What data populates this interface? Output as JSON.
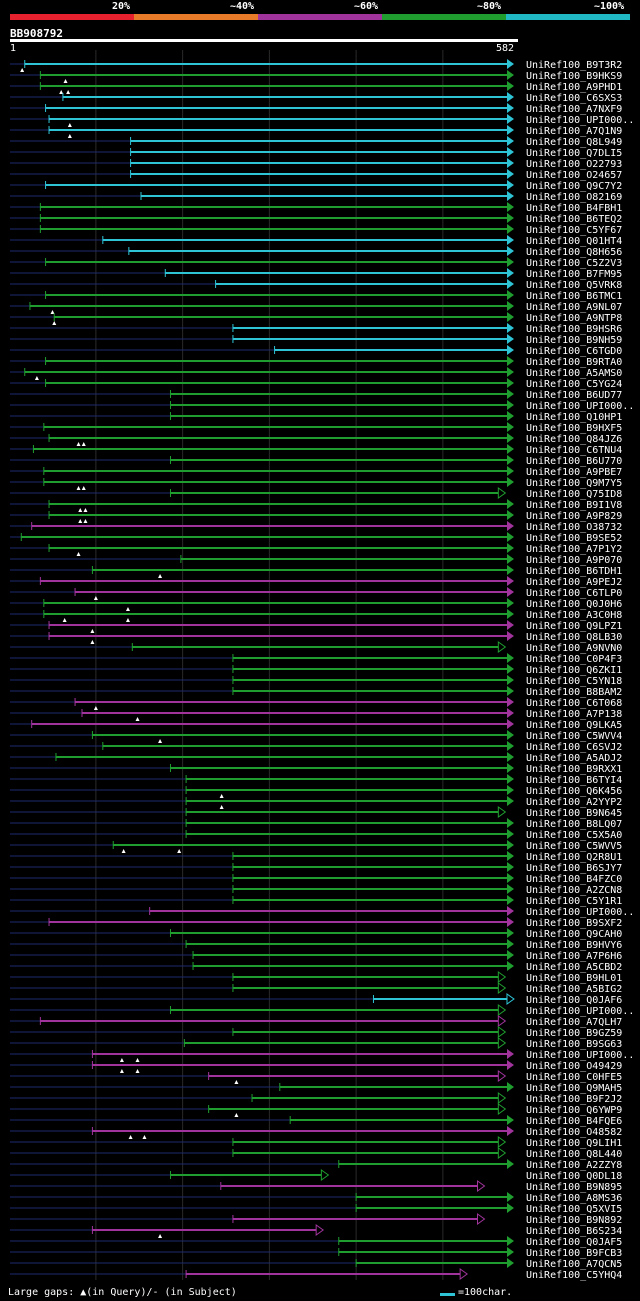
{
  "legend": {
    "labels": [
      "20%",
      "~40%",
      "~60%",
      "~80%",
      "~100%"
    ],
    "colors": [
      "#e8212f",
      "#e87b2a",
      "#a0349c",
      "#1f9e2f",
      "#1fb8c4"
    ]
  },
  "query": {
    "id": "BB908792",
    "start_label": "1",
    "end_label": "582",
    "length": 582
  },
  "footer": {
    "gaps_note": "Large gaps: ▲(in Query)/- (in Subject)",
    "scale_label": "=100char."
  },
  "hits": [
    {
      "name": "UniRef100_B9T3R2",
      "start": 18,
      "end": 582,
      "color": "cyan",
      "query_gaps": [
        15
      ],
      "arrow": "open"
    },
    {
      "name": "UniRef100_B9HKS9",
      "start": 36,
      "end": 582,
      "color": "green",
      "query_gaps": [
        65
      ],
      "arrow": "open"
    },
    {
      "name": "UniRef100_A9PHD1",
      "start": 36,
      "end": 582,
      "color": "green",
      "query_gaps": [
        60,
        68
      ],
      "arrow": "open"
    },
    {
      "name": "UniRef100_C6SXS3",
      "start": 62,
      "end": 582,
      "color": "cyan",
      "query_gaps": [],
      "arrow": "open"
    },
    {
      "name": "UniRef100_A7NXF9",
      "start": 42,
      "end": 582,
      "color": "cyan",
      "query_gaps": [],
      "arrow": "open"
    },
    {
      "name": "UniRef100_UPI000..",
      "start": 46,
      "end": 582,
      "color": "cyan",
      "query_gaps": [
        70
      ],
      "arrow": "open"
    },
    {
      "name": "UniRef100_A7Q1N9",
      "start": 46,
      "end": 582,
      "color": "cyan",
      "query_gaps": [
        70
      ],
      "arrow": "open"
    },
    {
      "name": "UniRef100_Q8L949",
      "start": 140,
      "end": 582,
      "color": "cyan",
      "query_gaps": [],
      "arrow": "open"
    },
    {
      "name": "UniRef100_Q7DLI5",
      "start": 140,
      "end": 582,
      "color": "cyan",
      "query_gaps": [],
      "arrow": "open"
    },
    {
      "name": "UniRef100_O22793",
      "start": 140,
      "end": 582,
      "color": "cyan",
      "query_gaps": [],
      "arrow": "open"
    },
    {
      "name": "UniRef100_O24657",
      "start": 140,
      "end": 582,
      "color": "cyan",
      "query_gaps": [],
      "arrow": "open"
    },
    {
      "name": "UniRef100_Q9C7Y2",
      "start": 42,
      "end": 582,
      "color": "cyan",
      "query_gaps": [],
      "arrow": "open"
    },
    {
      "name": "UniRef100_O82169",
      "start": 152,
      "end": 582,
      "color": "cyan",
      "query_gaps": [],
      "arrow": "open"
    },
    {
      "name": "UniRef100_B4FBH1",
      "start": 36,
      "end": 582,
      "color": "green",
      "query_gaps": [],
      "arrow": "open"
    },
    {
      "name": "UniRef100_B6TEQ2",
      "start": 36,
      "end": 582,
      "color": "green",
      "query_gaps": [],
      "arrow": "open"
    },
    {
      "name": "UniRef100_C5YF67",
      "start": 36,
      "end": 582,
      "color": "green",
      "query_gaps": [],
      "arrow": "open"
    },
    {
      "name": "UniRef100_Q01HT4",
      "start": 108,
      "end": 582,
      "color": "cyan",
      "query_gaps": [],
      "arrow": "open"
    },
    {
      "name": "UniRef100_Q8H656",
      "start": 138,
      "end": 582,
      "color": "cyan",
      "query_gaps": [],
      "arrow": "open"
    },
    {
      "name": "UniRef100_C5Z2V3",
      "start": 42,
      "end": 582,
      "color": "green",
      "query_gaps": [],
      "arrow": "open"
    },
    {
      "name": "UniRef100_B7FM95",
      "start": 180,
      "end": 582,
      "color": "cyan",
      "query_gaps": [],
      "arrow": "open"
    },
    {
      "name": "UniRef100_Q5VRK8",
      "start": 238,
      "end": 582,
      "color": "cyan",
      "query_gaps": [],
      "arrow": "open"
    },
    {
      "name": "UniRef100_B6TMC1",
      "start": 42,
      "end": 582,
      "color": "green",
      "query_gaps": [],
      "arrow": "open"
    },
    {
      "name": "UniRef100_A9NL07",
      "start": 24,
      "end": 582,
      "color": "green",
      "query_gaps": [
        50
      ],
      "arrow": "open"
    },
    {
      "name": "UniRef100_A9NTP8",
      "start": 52,
      "end": 582,
      "color": "green",
      "query_gaps": [
        52
      ],
      "arrow": "open"
    },
    {
      "name": "UniRef100_B9HSR6",
      "start": 258,
      "end": 582,
      "color": "cyan",
      "query_gaps": [],
      "arrow": "open"
    },
    {
      "name": "UniRef100_B9NH59",
      "start": 258,
      "end": 582,
      "color": "cyan",
      "query_gaps": [],
      "arrow": "open"
    },
    {
      "name": "UniRef100_C6TGD0",
      "start": 306,
      "end": 582,
      "color": "cyan",
      "query_gaps": [],
      "arrow": "open"
    },
    {
      "name": "UniRef100_B9RTA0",
      "start": 42,
      "end": 582,
      "color": "green",
      "query_gaps": [],
      "arrow": "open"
    },
    {
      "name": "UniRef100_A5AMS0",
      "start": 18,
      "end": 582,
      "color": "green",
      "query_gaps": [
        32
      ],
      "arrow": "open"
    },
    {
      "name": "UniRef100_C5YG24",
      "start": 42,
      "end": 582,
      "color": "green",
      "query_gaps": [],
      "arrow": "open"
    },
    {
      "name": "UniRef100_B6UD77",
      "start": 186,
      "end": 582,
      "color": "green",
      "query_gaps": [],
      "arrow": "open"
    },
    {
      "name": "UniRef100_UPI000..",
      "start": 186,
      "end": 582,
      "color": "green",
      "query_gaps": [],
      "arrow": "open"
    },
    {
      "name": "UniRef100_Q10HP1",
      "start": 186,
      "end": 582,
      "color": "green",
      "query_gaps": [],
      "arrow": "open"
    },
    {
      "name": "UniRef100_B9HXF5",
      "start": 40,
      "end": 582,
      "color": "green",
      "query_gaps": [],
      "arrow": "open"
    },
    {
      "name": "UniRef100_Q84JZ6",
      "start": 46,
      "end": 582,
      "color": "green",
      "query_gaps": [
        80,
        86
      ],
      "arrow": "open"
    },
    {
      "name": "UniRef100_C6TNU4",
      "start": 28,
      "end": 582,
      "color": "green",
      "query_gaps": [],
      "arrow": "open"
    },
    {
      "name": "UniRef100_B6U770",
      "start": 186,
      "end": 582,
      "color": "green",
      "query_gaps": [],
      "arrow": "open"
    },
    {
      "name": "UniRef100_A9PBE7",
      "start": 40,
      "end": 582,
      "color": "green",
      "query_gaps": [],
      "arrow": "open"
    },
    {
      "name": "UniRef100_Q9M7Y5",
      "start": 40,
      "end": 582,
      "color": "green",
      "query_gaps": [
        80,
        86
      ],
      "arrow": "open"
    },
    {
      "name": "UniRef100_Q75ID8",
      "start": 186,
      "end": 572,
      "color": "green",
      "query_gaps": [],
      "arrow": "closed"
    },
    {
      "name": "UniRef100_B9I1V8",
      "start": 46,
      "end": 582,
      "color": "green",
      "query_gaps": [
        82,
        88
      ],
      "arrow": "open"
    },
    {
      "name": "UniRef100_A9P829",
      "start": 46,
      "end": 582,
      "color": "green",
      "query_gaps": [
        82,
        88
      ],
      "arrow": "open"
    },
    {
      "name": "UniRef100_O38732",
      "start": 26,
      "end": 582,
      "color": "magenta",
      "query_gaps": [],
      "arrow": "open"
    },
    {
      "name": "UniRef100_B9SE52",
      "start": 14,
      "end": 582,
      "color": "green",
      "query_gaps": [],
      "arrow": "open"
    },
    {
      "name": "UniRef100_A7P1Y2",
      "start": 46,
      "end": 582,
      "color": "green",
      "query_gaps": [
        80
      ],
      "arrow": "open"
    },
    {
      "name": "UniRef100_A9P070",
      "start": 198,
      "end": 582,
      "color": "green",
      "query_gaps": [],
      "arrow": "open"
    },
    {
      "name": "UniRef100_B6TDH1",
      "start": 96,
      "end": 582,
      "color": "green",
      "query_gaps": [
        174
      ],
      "arrow": "open"
    },
    {
      "name": "UniRef100_A9PEJ2",
      "start": 36,
      "end": 582,
      "color": "magenta",
      "query_gaps": [],
      "arrow": "open"
    },
    {
      "name": "UniRef100_C6TLP0",
      "start": 76,
      "end": 582,
      "color": "magenta",
      "query_gaps": [
        100
      ],
      "arrow": "open"
    },
    {
      "name": "UniRef100_Q0J0H6",
      "start": 40,
      "end": 582,
      "color": "green",
      "query_gaps": [
        137
      ],
      "arrow": "open"
    },
    {
      "name": "UniRef100_A3C0H8",
      "start": 40,
      "end": 582,
      "color": "green",
      "query_gaps": [
        64,
        137
      ],
      "arrow": "open"
    },
    {
      "name": "UniRef100_Q9LPZ1",
      "start": 46,
      "end": 582,
      "color": "magenta",
      "query_gaps": [
        96
      ],
      "arrow": "open"
    },
    {
      "name": "UniRef100_Q8LB30",
      "start": 46,
      "end": 582,
      "color": "magenta",
      "query_gaps": [
        96
      ],
      "arrow": "open"
    },
    {
      "name": "UniRef100_A9NVN0",
      "start": 142,
      "end": 572,
      "color": "green",
      "query_gaps": [],
      "arrow": "closed"
    },
    {
      "name": "UniRef100_C0P4F3",
      "start": 258,
      "end": 582,
      "color": "green",
      "query_gaps": [],
      "arrow": "open"
    },
    {
      "name": "UniRef100_Q6ZKI1",
      "start": 258,
      "end": 582,
      "color": "green",
      "query_gaps": [],
      "arrow": "open"
    },
    {
      "name": "UniRef100_C5YN18",
      "start": 258,
      "end": 582,
      "color": "green",
      "query_gaps": [],
      "arrow": "open"
    },
    {
      "name": "UniRef100_B8BAM2",
      "start": 258,
      "end": 582,
      "color": "green",
      "query_gaps": [],
      "arrow": "open"
    },
    {
      "name": "UniRef100_C6T068",
      "start": 76,
      "end": 582,
      "color": "magenta",
      "query_gaps": [
        100
      ],
      "arrow": "open"
    },
    {
      "name": "UniRef100_A7P138",
      "start": 84,
      "end": 582,
      "color": "magenta",
      "query_gaps": [
        148
      ],
      "arrow": "open"
    },
    {
      "name": "UniRef100_Q9LKA5",
      "start": 26,
      "end": 582,
      "color": "magenta",
      "query_gaps": [],
      "arrow": "open"
    },
    {
      "name": "UniRef100_C5WVV4",
      "start": 96,
      "end": 582,
      "color": "green",
      "query_gaps": [
        174
      ],
      "arrow": "open"
    },
    {
      "name": "UniRef100_C6SVJ2",
      "start": 108,
      "end": 582,
      "color": "green",
      "query_gaps": [],
      "arrow": "open"
    },
    {
      "name": "UniRef100_A5ADJ2",
      "start": 54,
      "end": 582,
      "color": "green",
      "query_gaps": [],
      "arrow": "open"
    },
    {
      "name": "UniRef100_B9RXX1",
      "start": 186,
      "end": 582,
      "color": "green",
      "query_gaps": [],
      "arrow": "open"
    },
    {
      "name": "UniRef100_B6TYI4",
      "start": 204,
      "end": 582,
      "color": "green",
      "query_gaps": [],
      "arrow": "open"
    },
    {
      "name": "UniRef100_Q6K456",
      "start": 204,
      "end": 582,
      "color": "green",
      "query_gaps": [
        245
      ],
      "arrow": "open"
    },
    {
      "name": "UniRef100_A2YYP2",
      "start": 204,
      "end": 582,
      "color": "green",
      "query_gaps": [
        245
      ],
      "arrow": "open"
    },
    {
      "name": "UniRef100_B9N645",
      "start": 204,
      "end": 572,
      "color": "green",
      "query_gaps": [],
      "arrow": "closed"
    },
    {
      "name": "UniRef100_B8LQ07",
      "start": 204,
      "end": 582,
      "color": "green",
      "query_gaps": [],
      "arrow": "open"
    },
    {
      "name": "UniRef100_C5X5A0",
      "start": 204,
      "end": 582,
      "color": "green",
      "query_gaps": [],
      "arrow": "open"
    },
    {
      "name": "UniRef100_C5WVV5",
      "start": 120,
      "end": 582,
      "color": "green",
      "query_gaps": [
        132,
        196
      ],
      "arrow": "open"
    },
    {
      "name": "UniRef100_Q2R8U1",
      "start": 258,
      "end": 582,
      "color": "green",
      "query_gaps": [],
      "arrow": "open"
    },
    {
      "name": "UniRef100_B6SJY7",
      "start": 258,
      "end": 582,
      "color": "green",
      "query_gaps": [],
      "arrow": "open"
    },
    {
      "name": "UniRef100_B4FZC0",
      "start": 258,
      "end": 582,
      "color": "green",
      "query_gaps": [],
      "arrow": "open"
    },
    {
      "name": "UniRef100_A2ZCN8",
      "start": 258,
      "end": 582,
      "color": "green",
      "query_gaps": [],
      "arrow": "open"
    },
    {
      "name": "UniRef100_C5Y1R1",
      "start": 258,
      "end": 582,
      "color": "green",
      "query_gaps": [],
      "arrow": "open"
    },
    {
      "name": "UniRef100_UPI000..",
      "start": 162,
      "end": 582,
      "color": "magenta",
      "query_gaps": [],
      "arrow": "open"
    },
    {
      "name": "UniRef100_B9SXF2",
      "start": 46,
      "end": 582,
      "color": "magenta",
      "query_gaps": [],
      "arrow": "open"
    },
    {
      "name": "UniRef100_Q9CAH0",
      "start": 186,
      "end": 582,
      "color": "green",
      "query_gaps": [],
      "arrow": "open"
    },
    {
      "name": "UniRef100_B9HVY6",
      "start": 204,
      "end": 582,
      "color": "green",
      "query_gaps": [],
      "arrow": "open"
    },
    {
      "name": "UniRef100_A7P6H6",
      "start": 212,
      "end": 582,
      "color": "green",
      "query_gaps": [],
      "arrow": "open"
    },
    {
      "name": "UniRef100_A5CBD2",
      "start": 212,
      "end": 582,
      "color": "green",
      "query_gaps": [],
      "arrow": "open"
    },
    {
      "name": "UniRef100_B9HL01",
      "start": 258,
      "end": 572,
      "color": "green",
      "query_gaps": [],
      "arrow": "closed"
    },
    {
      "name": "UniRef100_A5BIG2",
      "start": 258,
      "end": 572,
      "color": "green",
      "query_gaps": [],
      "arrow": "closed"
    },
    {
      "name": "UniRef100_Q0JAF6",
      "start": 420,
      "end": 582,
      "color": "cyan",
      "query_gaps": [],
      "arrow": "closed"
    },
    {
      "name": "UniRef100_UPI000..",
      "start": 186,
      "end": 572,
      "color": "green",
      "query_gaps": [],
      "arrow": "closed"
    },
    {
      "name": "UniRef100_A7QLH7",
      "start": 36,
      "end": 572,
      "color": "magenta",
      "query_gaps": [],
      "arrow": "closed"
    },
    {
      "name": "UniRef100_B9GZ59",
      "start": 258,
      "end": 572,
      "color": "green",
      "query_gaps": [],
      "arrow": "closed"
    },
    {
      "name": "UniRef100_B9SG63",
      "start": 202,
      "end": 572,
      "color": "green",
      "query_gaps": [],
      "arrow": "closed"
    },
    {
      "name": "UniRef100_UPI000..",
      "start": 96,
      "end": 582,
      "color": "magenta",
      "query_gaps": [
        130,
        148
      ],
      "arrow": "open"
    },
    {
      "name": "UniRef100_O49429",
      "start": 96,
      "end": 582,
      "color": "magenta",
      "query_gaps": [
        130,
        148
      ],
      "arrow": "open"
    },
    {
      "name": "UniRef100_C0HFE5",
      "start": 230,
      "end": 572,
      "color": "magenta",
      "query_gaps": [
        262
      ],
      "arrow": "closed"
    },
    {
      "name": "UniRef100_Q9MAH5",
      "start": 312,
      "end": 582,
      "color": "green",
      "query_gaps": [],
      "arrow": "open"
    },
    {
      "name": "UniRef100_B9F2J2",
      "start": 280,
      "end": 572,
      "color": "green",
      "query_gaps": [],
      "arrow": "closed"
    },
    {
      "name": "UniRef100_Q6YWP9",
      "start": 230,
      "end": 572,
      "color": "green",
      "query_gaps": [
        262
      ],
      "arrow": "closed"
    },
    {
      "name": "UniRef100_B4FQE6",
      "start": 324,
      "end": 582,
      "color": "green",
      "query_gaps": [],
      "arrow": "open"
    },
    {
      "name": "UniRef100_O48582",
      "start": 96,
      "end": 582,
      "color": "magenta",
      "query_gaps": [
        140,
        156
      ],
      "arrow": "open"
    },
    {
      "name": "UniRef100_Q9LIH1",
      "start": 258,
      "end": 572,
      "color": "green",
      "query_gaps": [],
      "arrow": "closed"
    },
    {
      "name": "UniRef100_Q8L440",
      "start": 258,
      "end": 572,
      "color": "green",
      "query_gaps": [],
      "arrow": "closed"
    },
    {
      "name": "UniRef100_A2ZZY8",
      "start": 380,
      "end": 582,
      "color": "green",
      "query_gaps": [],
      "arrow": "open"
    },
    {
      "name": "UniRef100_Q0DL18",
      "start": 186,
      "end": 368,
      "color": "green",
      "query_gaps": [],
      "arrow": "closed"
    },
    {
      "name": "UniRef100_B9N895",
      "start": 244,
      "end": 548,
      "color": "magenta",
      "query_gaps": [],
      "arrow": "closed"
    },
    {
      "name": "UniRef100_A8MS36",
      "start": 400,
      "end": 582,
      "color": "green",
      "query_gaps": [],
      "arrow": "open"
    },
    {
      "name": "UniRef100_Q5XVI5",
      "start": 400,
      "end": 582,
      "color": "green",
      "query_gaps": [],
      "arrow": "open"
    },
    {
      "name": "UniRef100_B9N892",
      "start": 258,
      "end": 548,
      "color": "magenta",
      "query_gaps": [],
      "arrow": "closed"
    },
    {
      "name": "UniRef100_B6S234",
      "start": 96,
      "end": 362,
      "color": "magenta",
      "query_gaps": [
        174
      ],
      "arrow": "closed"
    },
    {
      "name": "UniRef100_Q0JAF5",
      "start": 380,
      "end": 582,
      "color": "green",
      "query_gaps": [],
      "arrow": "open"
    },
    {
      "name": "UniRef100_B9FCB3",
      "start": 380,
      "end": 582,
      "color": "green",
      "query_gaps": [],
      "arrow": "open"
    },
    {
      "name": "UniRef100_A7QCN5",
      "start": 400,
      "end": 582,
      "color": "green",
      "query_gaps": [],
      "arrow": "open"
    },
    {
      "name": "UniRef100_C5YHQ4",
      "start": 204,
      "end": 528,
      "color": "magenta",
      "query_gaps": [],
      "arrow": "closed"
    }
  ]
}
